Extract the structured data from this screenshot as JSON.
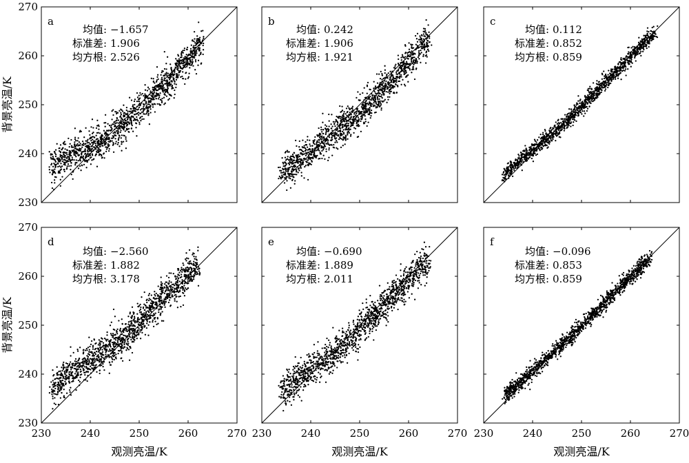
{
  "figure": {
    "ylabel": "背景亮温/K",
    "xlabel": "观测亮温/K",
    "stat_labels": [
      "均值",
      "标准差",
      "均方根"
    ]
  },
  "chart_data": [
    {
      "panel": "a",
      "type": "scatter",
      "xlim": [
        230,
        270
      ],
      "ylim": [
        230,
        270
      ],
      "xticks": [
        230,
        240,
        250,
        260,
        270
      ],
      "yticks": [
        230,
        240,
        250,
        260,
        270
      ],
      "stats": {
        "mean": "−1.657",
        "std": "1.906",
        "rms": "2.526"
      },
      "trend": {
        "x": [
          232,
          236,
          240,
          244,
          248,
          252,
          256,
          260,
          263
        ],
        "y": [
          237.5,
          239.8,
          241.2,
          243.8,
          247.3,
          251.2,
          255.0,
          259.3,
          263.0
        ]
      },
      "spread": 1.9
    },
    {
      "panel": "b",
      "type": "scatter",
      "xlim": [
        230,
        270
      ],
      "ylim": [
        230,
        270
      ],
      "xticks": [
        230,
        240,
        250,
        260,
        270
      ],
      "yticks": [
        230,
        240,
        250,
        260,
        270
      ],
      "stats": {
        "mean": "0.242",
        "std": "1.906",
        "rms": "1.921"
      },
      "trend": {
        "x": [
          234,
          238,
          242,
          246,
          250,
          254,
          258,
          262,
          264
        ],
        "y": [
          236.0,
          239.0,
          241.8,
          245.0,
          248.3,
          252.2,
          256.5,
          261.0,
          263.5
        ]
      },
      "spread": 1.9
    },
    {
      "panel": "c",
      "type": "scatter",
      "xlim": [
        230,
        270
      ],
      "ylim": [
        230,
        270
      ],
      "xticks": [
        230,
        240,
        250,
        260,
        270
      ],
      "yticks": [
        230,
        240,
        250,
        260,
        270
      ],
      "stats": {
        "mean": "0.112",
        "std": "0.852",
        "rms": "0.859"
      },
      "trend": {
        "x": [
          234,
          238,
          242,
          246,
          250,
          254,
          258,
          262,
          265
        ],
        "y": [
          235.5,
          239.0,
          242.3,
          245.6,
          249.6,
          253.6,
          257.7,
          261.8,
          264.8
        ]
      },
      "spread": 0.85
    },
    {
      "panel": "d",
      "type": "scatter",
      "xlim": [
        230,
        270
      ],
      "ylim": [
        230,
        270
      ],
      "xticks": [
        230,
        240,
        250,
        260,
        270
      ],
      "yticks": [
        230,
        240,
        250,
        260,
        270
      ],
      "stats": {
        "mean": "−2.560",
        "std": "1.882",
        "rms": "3.178"
      },
      "trend": {
        "x": [
          232,
          236,
          240,
          244,
          248,
          252,
          256,
          260,
          262
        ],
        "y": [
          237.0,
          240.0,
          242.8,
          245.3,
          248.5,
          252.8,
          256.8,
          260.5,
          262.0
        ]
      },
      "spread": 1.9
    },
    {
      "panel": "e",
      "type": "scatter",
      "xlim": [
        230,
        270
      ],
      "ylim": [
        230,
        270
      ],
      "xticks": [
        230,
        240,
        250,
        260,
        270
      ],
      "yticks": [
        230,
        240,
        250,
        260,
        270
      ],
      "stats": {
        "mean": "−0.690",
        "std": "1.889",
        "rms": "2.011"
      },
      "trend": {
        "x": [
          234,
          238,
          242,
          246,
          250,
          254,
          258,
          262,
          264
        ],
        "y": [
          236.5,
          239.7,
          242.3,
          245.2,
          248.8,
          253.0,
          257.2,
          261.2,
          263.0
        ]
      },
      "spread": 1.9
    },
    {
      "panel": "f",
      "type": "scatter",
      "xlim": [
        230,
        270
      ],
      "ylim": [
        230,
        270
      ],
      "xticks": [
        230,
        240,
        250,
        260,
        270
      ],
      "yticks": [
        230,
        240,
        250,
        260,
        270
      ],
      "stats": {
        "mean": "−0.096",
        "std": "0.853",
        "rms": "0.859"
      },
      "trend": {
        "x": [
          234,
          238,
          242,
          246,
          250,
          254,
          258,
          262,
          264
        ],
        "y": [
          235.5,
          238.8,
          242.3,
          246.0,
          249.8,
          253.8,
          257.9,
          261.8,
          263.8
        ]
      },
      "spread": 0.85
    }
  ]
}
